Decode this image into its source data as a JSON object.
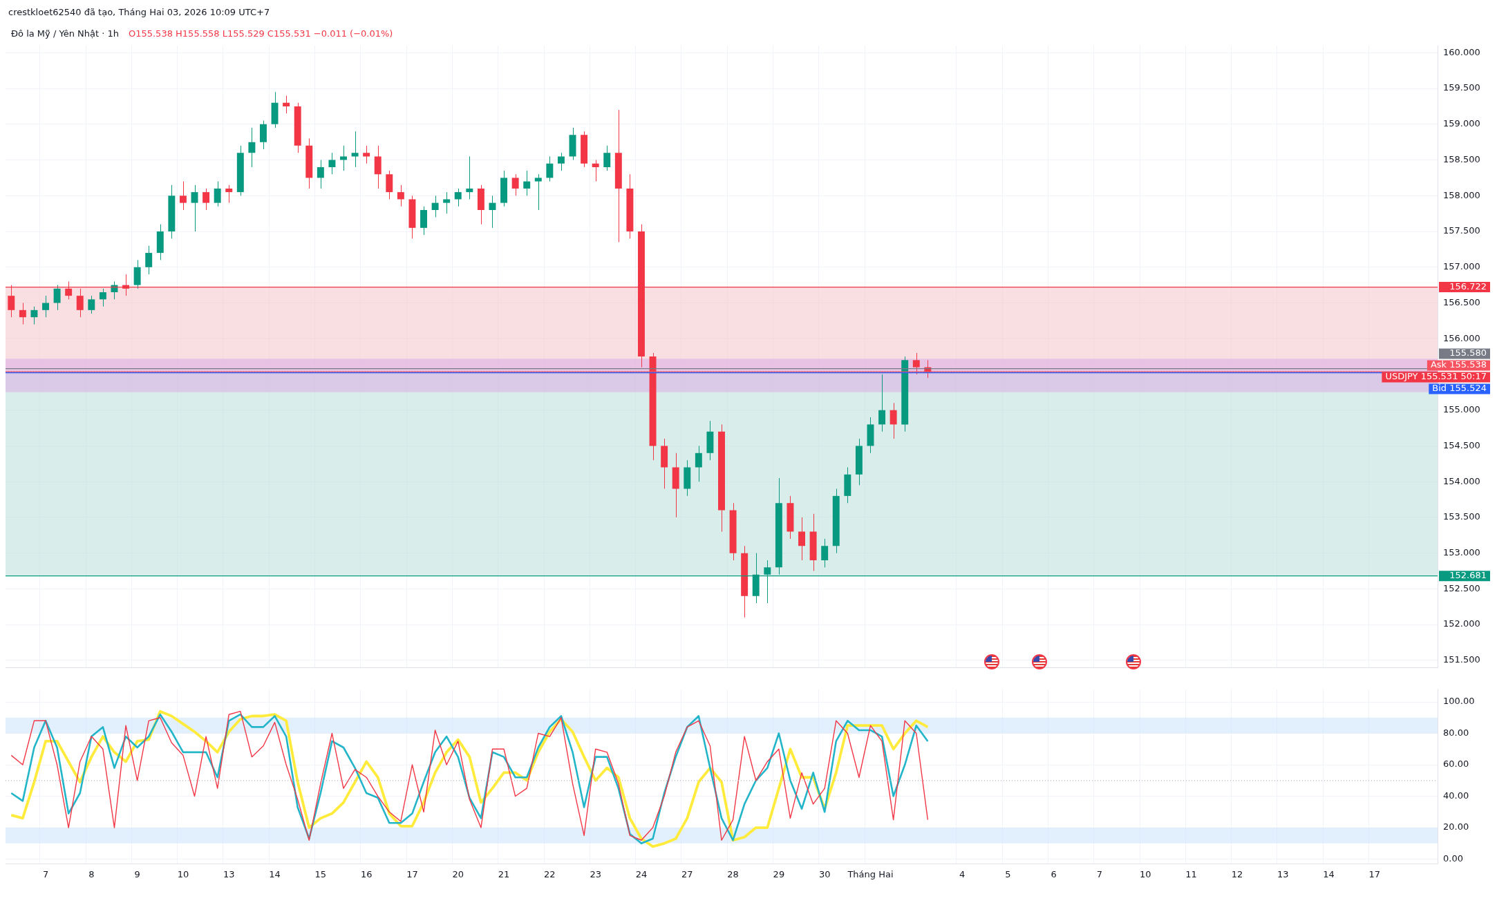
{
  "chart_data": [
    {
      "type": "candlestick",
      "title": "Đô la Mỹ / Yên Nhật · 1h",
      "subtitle": "O155.538 H155.558 L155.529 C155.531 −0.011 (−0.01%)",
      "categories": [
        null,
        null,
        null,
        null,
        null,
        null,
        null,
        null,
        null,
        null,
        null,
        null,
        null,
        null,
        null,
        null,
        null,
        null,
        null,
        null,
        null,
        null,
        null,
        null,
        null,
        null,
        null,
        null,
        null,
        null,
        null,
        null,
        null,
        null,
        null,
        null,
        null,
        null,
        null,
        null,
        null,
        null,
        null,
        null,
        null,
        null,
        null,
        null,
        null,
        null,
        null,
        null,
        null,
        null,
        null,
        null,
        null,
        null,
        null,
        null,
        null,
        null,
        null,
        null,
        null,
        null,
        null,
        null,
        null,
        null,
        null,
        null,
        null,
        null,
        null,
        null,
        null,
        null,
        null,
        null,
        null,
        null,
        null,
        null,
        null,
        null,
        null,
        null,
        null,
        null,
        null,
        null,
        null,
        null,
        null,
        null,
        null,
        null,
        null,
        null,
        null,
        null,
        null,
        null,
        null,
        null,
        null,
        null,
        null,
        null,
        null,
        null,
        null,
        null,
        null,
        null,
        null,
        null,
        null,
        null,
        null,
        null,
        null,
        null,
        null
      ],
      "ohlc": [
        [
          156.6,
          156.75,
          156.3,
          156.4
        ],
        [
          156.4,
          156.5,
          156.2,
          156.3
        ],
        [
          156.3,
          156.45,
          156.2,
          156.4
        ],
        [
          156.4,
          156.6,
          156.3,
          156.5
        ],
        [
          156.5,
          156.75,
          156.4,
          156.7
        ],
        [
          156.7,
          156.8,
          156.55,
          156.6
        ],
        [
          156.6,
          156.7,
          156.3,
          156.4
        ],
        [
          156.4,
          156.6,
          156.35,
          156.55
        ],
        [
          156.55,
          156.7,
          156.45,
          156.65
        ],
        [
          156.65,
          156.8,
          156.55,
          156.75
        ],
        [
          156.75,
          156.9,
          156.6,
          156.7
        ],
        [
          156.75,
          157.1,
          156.7,
          157.0
        ],
        [
          157.0,
          157.3,
          156.9,
          157.2
        ],
        [
          157.2,
          157.6,
          157.1,
          157.5
        ],
        [
          157.5,
          158.15,
          157.4,
          158.0
        ],
        [
          158.0,
          158.2,
          157.8,
          157.9
        ],
        [
          157.9,
          158.15,
          157.5,
          158.05
        ],
        [
          158.05,
          158.1,
          157.8,
          157.9
        ],
        [
          157.9,
          158.2,
          157.85,
          158.1
        ],
        [
          158.1,
          158.15,
          157.9,
          158.05
        ],
        [
          158.05,
          158.7,
          158.0,
          158.6
        ],
        [
          158.6,
          158.95,
          158.4,
          158.75
        ],
        [
          158.75,
          159.05,
          158.65,
          159.0
        ],
        [
          159.0,
          159.45,
          158.95,
          159.3
        ],
        [
          159.3,
          159.4,
          159.15,
          159.25
        ],
        [
          159.25,
          159.3,
          158.6,
          158.7
        ],
        [
          158.7,
          158.8,
          158.1,
          158.25
        ],
        [
          158.25,
          158.5,
          158.1,
          158.4
        ],
        [
          158.4,
          158.6,
          158.3,
          158.5
        ],
        [
          158.5,
          158.7,
          158.35,
          158.55
        ],
        [
          158.55,
          158.9,
          158.4,
          158.6
        ],
        [
          158.6,
          158.7,
          158.45,
          158.55
        ],
        [
          158.55,
          158.7,
          158.1,
          158.3
        ],
        [
          158.3,
          158.35,
          157.95,
          158.05
        ],
        [
          158.05,
          158.15,
          157.85,
          157.95
        ],
        [
          157.95,
          158.0,
          157.4,
          157.55
        ],
        [
          157.55,
          157.85,
          157.45,
          157.8
        ],
        [
          157.8,
          158.0,
          157.7,
          157.9
        ],
        [
          157.9,
          158.05,
          157.75,
          157.95
        ],
        [
          157.95,
          158.1,
          157.85,
          158.05
        ],
        [
          158.05,
          158.55,
          157.95,
          158.1
        ],
        [
          158.1,
          158.15,
          157.6,
          157.8
        ],
        [
          157.8,
          158.0,
          157.55,
          157.9
        ],
        [
          157.9,
          158.35,
          157.85,
          158.25
        ],
        [
          158.25,
          158.3,
          158.0,
          158.1
        ],
        [
          158.1,
          158.35,
          158.0,
          158.2
        ],
        [
          158.2,
          158.3,
          157.8,
          158.25
        ],
        [
          158.25,
          158.55,
          158.2,
          158.45
        ],
        [
          158.45,
          158.6,
          158.35,
          158.55
        ],
        [
          158.55,
          158.95,
          158.5,
          158.85
        ],
        [
          158.85,
          158.9,
          158.4,
          158.45
        ],
        [
          158.45,
          158.5,
          158.2,
          158.4
        ],
        [
          158.4,
          158.7,
          158.35,
          158.6
        ],
        [
          158.6,
          159.2,
          157.35,
          158.1
        ],
        [
          158.1,
          158.3,
          157.4,
          157.5
        ],
        [
          157.5,
          157.6,
          155.6,
          155.75
        ],
        [
          155.75,
          155.8,
          154.3,
          154.5
        ],
        [
          154.5,
          154.6,
          153.9,
          154.2
        ],
        [
          154.2,
          154.4,
          153.5,
          153.9
        ],
        [
          153.9,
          154.3,
          153.8,
          154.2
        ],
        [
          154.2,
          154.5,
          154.0,
          154.4
        ],
        [
          154.4,
          154.85,
          154.3,
          154.7
        ],
        [
          154.7,
          154.8,
          153.3,
          153.6
        ],
        [
          153.6,
          153.7,
          152.9,
          153.0
        ],
        [
          153.0,
          153.1,
          152.1,
          152.4
        ],
        [
          152.4,
          153.0,
          152.3,
          152.7
        ],
        [
          152.7,
          152.9,
          152.3,
          152.8
        ],
        [
          152.8,
          154.05,
          152.7,
          153.7
        ],
        [
          153.7,
          153.8,
          153.2,
          153.3
        ],
        [
          153.3,
          153.5,
          152.9,
          153.1
        ],
        [
          153.3,
          153.55,
          152.75,
          152.9
        ],
        [
          152.9,
          153.2,
          152.8,
          153.1
        ],
        [
          153.1,
          153.9,
          153.0,
          153.8
        ],
        [
          153.8,
          154.2,
          153.7,
          154.1
        ],
        [
          154.1,
          154.6,
          153.95,
          154.5
        ],
        [
          154.5,
          154.9,
          154.4,
          154.8
        ],
        [
          154.8,
          155.5,
          154.7,
          155.0
        ],
        [
          155.0,
          155.1,
          154.6,
          154.8
        ],
        [
          154.8,
          155.75,
          154.7,
          155.7
        ],
        [
          155.7,
          155.8,
          155.5,
          155.6
        ],
        [
          155.6,
          155.7,
          155.45,
          155.53
        ],
        null,
        null,
        null,
        null,
        null,
        null,
        null,
        null,
        null,
        null,
        null,
        null,
        null,
        null,
        null,
        null,
        null,
        null,
        null,
        null,
        null,
        null,
        null,
        null,
        null,
        null,
        null,
        null,
        null,
        null,
        null,
        null,
        null,
        null,
        null,
        null,
        null,
        null,
        null,
        null,
        null,
        null,
        null,
        null
      ],
      "ylim": [
        151.4,
        160.1
      ],
      "yticks": [
        {
          "value": 151.5,
          "label": "151.500"
        },
        {
          "value": 152,
          "label": "152.000"
        },
        {
          "value": 152.5,
          "label": "152.500"
        },
        {
          "value": 153,
          "label": "153.000"
        },
        {
          "value": 153.5,
          "label": "153.500"
        },
        {
          "value": 154,
          "label": "154.000"
        },
        {
          "value": 154.5,
          "label": "154.500"
        },
        {
          "value": 155,
          "label": "155.000"
        },
        {
          "value": 155.5,
          "label": null
        },
        {
          "value": 156,
          "label": "156.000"
        },
        {
          "value": 156.5,
          "label": "156.500"
        },
        {
          "value": 157,
          "label": "157.000"
        },
        {
          "value": 157.5,
          "label": "157.500"
        },
        {
          "value": 158,
          "label": "158.000"
        },
        {
          "value": 158.5,
          "label": "158.500"
        },
        {
          "value": 159,
          "label": "159.000"
        },
        {
          "value": 159.5,
          "label": "159.500"
        },
        {
          "value": 160,
          "label": "160.000"
        }
      ],
      "bands": [
        {
          "axis": "y",
          "from": 155.538,
          "to": 156.722,
          "color": "#f7c9ce"
        },
        {
          "axis": "y",
          "from": 152.681,
          "to": 155.538,
          "color": "#bfe3dc"
        },
        {
          "axis": "y",
          "from": 155.25,
          "to": 155.72,
          "color": "#dcb0e6"
        }
      ],
      "ref_lines": [
        {
          "axis": "y",
          "value": 156.722,
          "label": "156.722",
          "color": "#f23645"
        },
        {
          "axis": "y",
          "value": 155.58,
          "label": "155.580",
          "color": "#787b86"
        },
        {
          "axis": "y",
          "value": 155.538,
          "label": "Ask 155.538",
          "color": "#f7525f"
        },
        {
          "axis": "y",
          "value": 155.531,
          "label": "USDJPY 155.531 50:17",
          "color": "#f23645",
          "line_style": "dotted"
        },
        {
          "axis": "y",
          "value": 155.524,
          "label": "Bid 155.524",
          "color": "#2962ff"
        },
        {
          "axis": "y",
          "value": 152.681,
          "label": "152.681",
          "color": "#089981"
        }
      ],
      "annotations": [
        "crestkloet62540 đã tạo, Tháng Hai 03, 2026 10:09 UTC+7"
      ],
      "grid": true,
      "tick_labels": "y"
    },
    {
      "type": "line",
      "marker": "none",
      "categories": [
        null,
        null,
        null,
        "7",
        null,
        null,
        null,
        "8",
        null,
        null,
        null,
        "9",
        null,
        null,
        null,
        "10",
        null,
        null,
        null,
        "13",
        null,
        null,
        null,
        "14",
        null,
        null,
        null,
        "15",
        null,
        null,
        null,
        "16",
        null,
        null,
        null,
        "17",
        null,
        null,
        null,
        "20",
        null,
        null,
        null,
        "21",
        null,
        null,
        null,
        "22",
        null,
        null,
        null,
        "23",
        null,
        null,
        null,
        "24",
        null,
        null,
        null,
        "27",
        null,
        null,
        null,
        "28",
        null,
        null,
        null,
        "29",
        null,
        null,
        null,
        "30",
        null,
        null,
        null,
        "Tháng Hai",
        null,
        null,
        null,
        null,
        null,
        null,
        null,
        "4",
        null,
        null,
        null,
        "5",
        null,
        null,
        null,
        "6",
        null,
        null,
        null,
        "7",
        null,
        null,
        null,
        "10",
        null,
        null,
        null,
        "11",
        null,
        null,
        null,
        "12",
        null,
        null,
        null,
        "13",
        null,
        null,
        null,
        "14",
        null,
        null,
        null,
        "17",
        null,
        null,
        null,
        null,
        null
      ],
      "series": [
        {
          "color": "#f23645",
          "values": [
            66,
            60,
            88,
            88,
            60,
            20,
            62,
            78,
            70,
            20,
            85,
            50,
            88,
            90,
            74,
            66,
            40,
            78,
            45,
            92,
            94,
            65,
            72,
            87,
            60,
            38,
            12,
            48,
            80,
            45,
            57,
            52,
            40,
            30,
            24,
            60,
            30,
            82,
            60,
            75,
            38,
            20,
            70,
            70,
            40,
            45,
            80,
            78,
            90,
            48,
            15,
            70,
            68,
            48,
            15,
            12,
            20,
            40,
            68,
            84,
            88,
            72,
            12,
            25,
            78,
            50,
            62,
            70,
            26,
            55,
            35,
            45,
            88,
            80,
            52,
            85,
            75,
            25,
            88,
            80,
            25,
            null,
            null,
            null,
            null,
            null,
            null,
            null,
            null,
            null,
            null,
            null,
            null,
            null,
            null,
            null,
            null,
            null,
            null,
            null,
            null,
            null,
            null,
            null,
            null,
            null,
            null,
            null,
            null,
            null,
            null,
            null,
            null,
            null,
            null,
            null,
            null,
            null,
            null,
            null,
            null,
            null,
            null,
            null,
            null
          ]
        },
        {
          "color": "#22b5c9",
          "values": [
            42,
            37,
            71,
            88,
            71,
            29,
            42,
            78,
            84,
            58,
            78,
            71,
            78,
            92,
            81,
            68,
            68,
            68,
            52,
            88,
            92,
            84,
            84,
            91,
            78,
            33,
            13,
            42,
            75,
            71,
            58,
            42,
            39,
            23,
            23,
            29,
            49,
            68,
            78,
            65,
            39,
            26,
            68,
            65,
            52,
            52,
            71,
            84,
            91,
            68,
            33,
            65,
            65,
            45,
            16,
            10,
            13,
            42,
            65,
            84,
            91,
            58,
            26,
            12,
            35,
            50,
            58,
            80,
            50,
            32,
            55,
            30,
            75,
            88,
            82,
            82,
            78,
            40,
            60,
            85,
            75,
            null,
            null,
            null,
            null,
            null,
            null,
            null,
            null,
            null,
            null,
            null,
            null,
            null,
            null,
            null,
            null,
            null,
            null,
            null,
            null,
            null,
            null,
            null,
            null,
            null,
            null,
            null,
            null,
            null,
            null,
            null,
            null,
            null,
            null,
            null,
            null,
            null,
            null,
            null,
            null,
            null,
            null,
            null,
            null
          ]
        },
        {
          "color": "#ffeb3b",
          "values": [
            28,
            26,
            49,
            75,
            75,
            62,
            49,
            65,
            78,
            68,
            62,
            75,
            76,
            94,
            91,
            86,
            81,
            75,
            68,
            81,
            89,
            91,
            91,
            92,
            88,
            49,
            20,
            26,
            29,
            36,
            49,
            62,
            52,
            29,
            21,
            21,
            36,
            55,
            68,
            76,
            65,
            36,
            45,
            55,
            55,
            50,
            68,
            81,
            89,
            81,
            65,
            50,
            58,
            52,
            26,
            13,
            8,
            10,
            13,
            26,
            49,
            58,
            49,
            12,
            14,
            20,
            20,
            45,
            70,
            52,
            52,
            32,
            55,
            85,
            85,
            85,
            85,
            70,
            80,
            88,
            84,
            null,
            null,
            null,
            null,
            null,
            null,
            null,
            null,
            null,
            null,
            null,
            null,
            null,
            null,
            null,
            null,
            null,
            null,
            null,
            null,
            null,
            null,
            null,
            null,
            null,
            null,
            null,
            null,
            null,
            null,
            null,
            null,
            null,
            null,
            null,
            null,
            null,
            null,
            null,
            null,
            null,
            null,
            null,
            null
          ]
        }
      ],
      "ylim": [
        -3,
        108
      ],
      "yticks": [
        {
          "value": 0,
          "label": "0.00"
        },
        {
          "value": 20,
          "label": "20.00"
        },
        {
          "value": 40,
          "label": "40.00"
        },
        {
          "value": 60,
          "label": "60.00"
        },
        {
          "value": 80,
          "label": "80.00"
        },
        {
          "value": 100,
          "label": "100.00"
        }
      ],
      "bands": [
        {
          "axis": "y",
          "from": 80,
          "to": 90,
          "color": "#cfe5fb"
        },
        {
          "axis": "y",
          "from": 10,
          "to": 20,
          "color": "#cfe5fb"
        }
      ],
      "ref_lines": [
        {
          "axis": "y",
          "value": 50,
          "color": "#b2b5be",
          "line_style": "dotted"
        }
      ],
      "grid": true
    }
  ]
}
